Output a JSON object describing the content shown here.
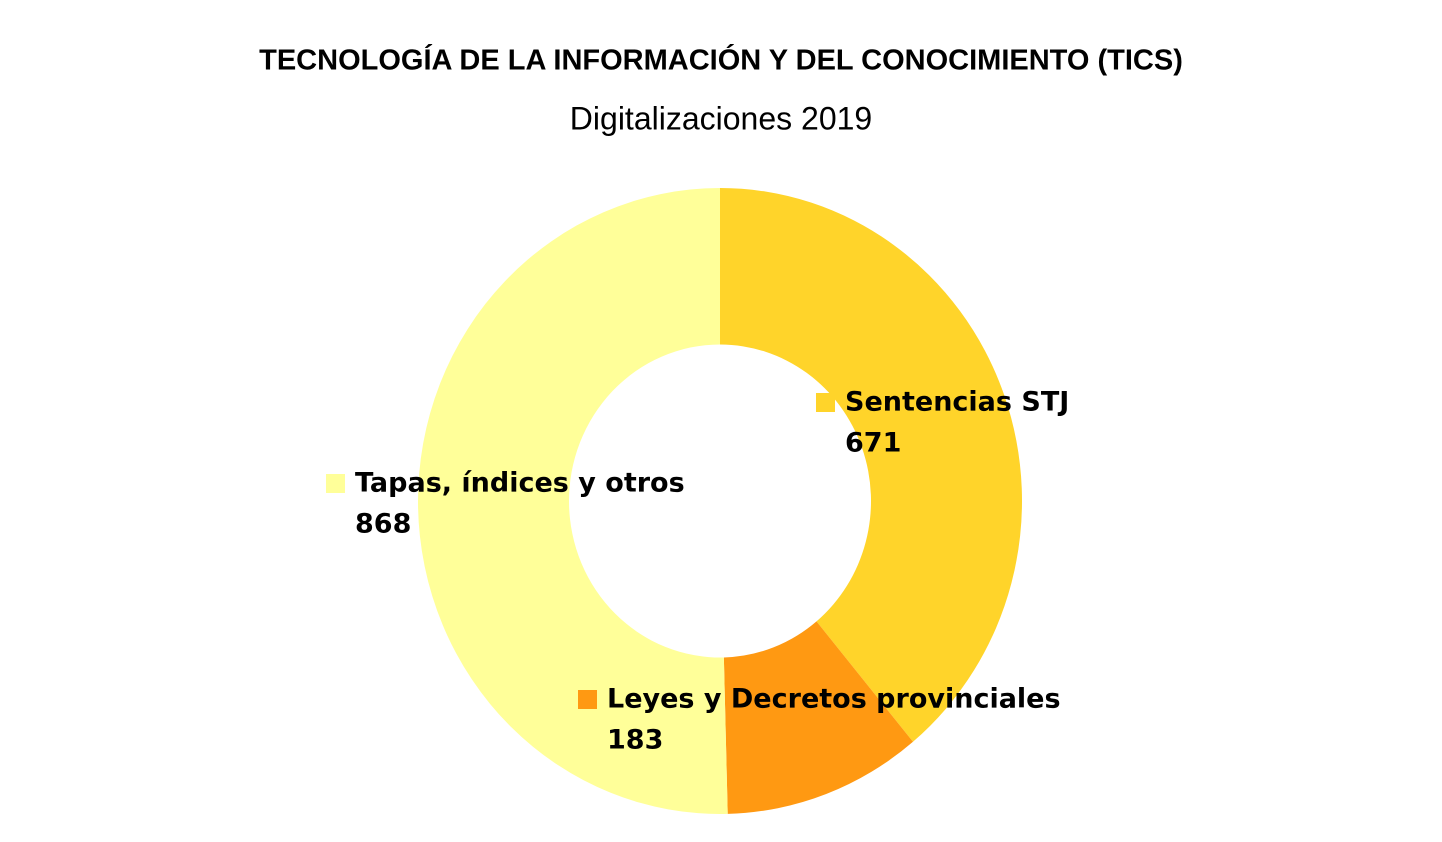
{
  "chart_data": {
    "type": "donut",
    "title": "TECNOLOGÍA DE LA INFORMACIÓN Y DEL CONOCIMIENTO (TICS)",
    "subtitle": "Digitalizaciones 2019",
    "categories": [
      "Sentencias STJ",
      "Leyes y Decretos provinciales",
      "Tapas, índices y otros"
    ],
    "values": [
      671,
      183,
      868
    ],
    "colors": [
      "#ffd42a",
      "#ff9912",
      "#ffff99"
    ]
  }
}
